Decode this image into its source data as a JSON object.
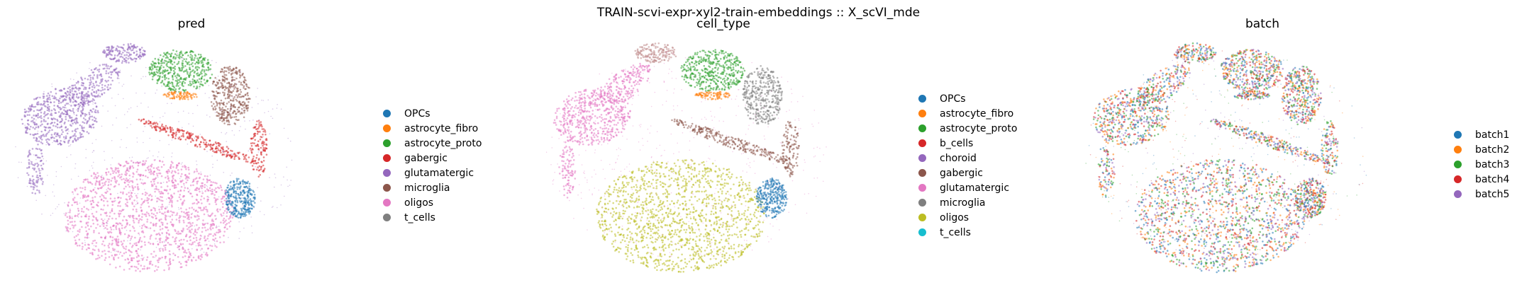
{
  "figure": {
    "title": "TRAIN-scvi-expr-xyl2-train-embeddings :: X_scVI_mde"
  },
  "chart_data": [
    {
      "type": "scatter",
      "title": "pred",
      "legend_placement": "right",
      "grid": false,
      "axes_visible": false,
      "legend": [
        {
          "label": "OPCs",
          "color": "#1f77b4"
        },
        {
          "label": "astrocyte_fibro",
          "color": "#ff7f0e"
        },
        {
          "label": "astrocyte_proto",
          "color": "#2ca02c"
        },
        {
          "label": "gabergic",
          "color": "#d62728"
        },
        {
          "label": "glutamatergic",
          "color": "#9467bd"
        },
        {
          "label": "microglia",
          "color": "#8c564b"
        },
        {
          "label": "oligos",
          "color": "#e377c2"
        },
        {
          "label": "t_cells",
          "color": "#7f7f7f"
        }
      ]
    },
    {
      "type": "scatter",
      "title": "cell_type",
      "legend_placement": "right",
      "grid": false,
      "axes_visible": false,
      "legend": [
        {
          "label": "OPCs",
          "color": "#1f77b4"
        },
        {
          "label": "astrocyte_fibro",
          "color": "#ff7f0e"
        },
        {
          "label": "astrocyte_proto",
          "color": "#2ca02c"
        },
        {
          "label": "b_cells",
          "color": "#d62728"
        },
        {
          "label": "choroid",
          "color": "#9467bd"
        },
        {
          "label": "gabergic",
          "color": "#8c564b"
        },
        {
          "label": "glutamatergic",
          "color": "#e377c2"
        },
        {
          "label": "microglia",
          "color": "#7f7f7f"
        },
        {
          "label": "oligos",
          "color": "#bcbd22"
        },
        {
          "label": "t_cells",
          "color": "#17becf"
        }
      ]
    },
    {
      "type": "scatter",
      "title": "batch",
      "legend_placement": "right",
      "grid": false,
      "axes_visible": false,
      "legend": [
        {
          "label": "batch1",
          "color": "#1f77b4"
        },
        {
          "label": "batch2",
          "color": "#ff7f0e"
        },
        {
          "label": "batch3",
          "color": "#2ca02c"
        },
        {
          "label": "batch4",
          "color": "#d62728"
        },
        {
          "label": "batch5",
          "color": "#9467bd"
        }
      ]
    }
  ]
}
